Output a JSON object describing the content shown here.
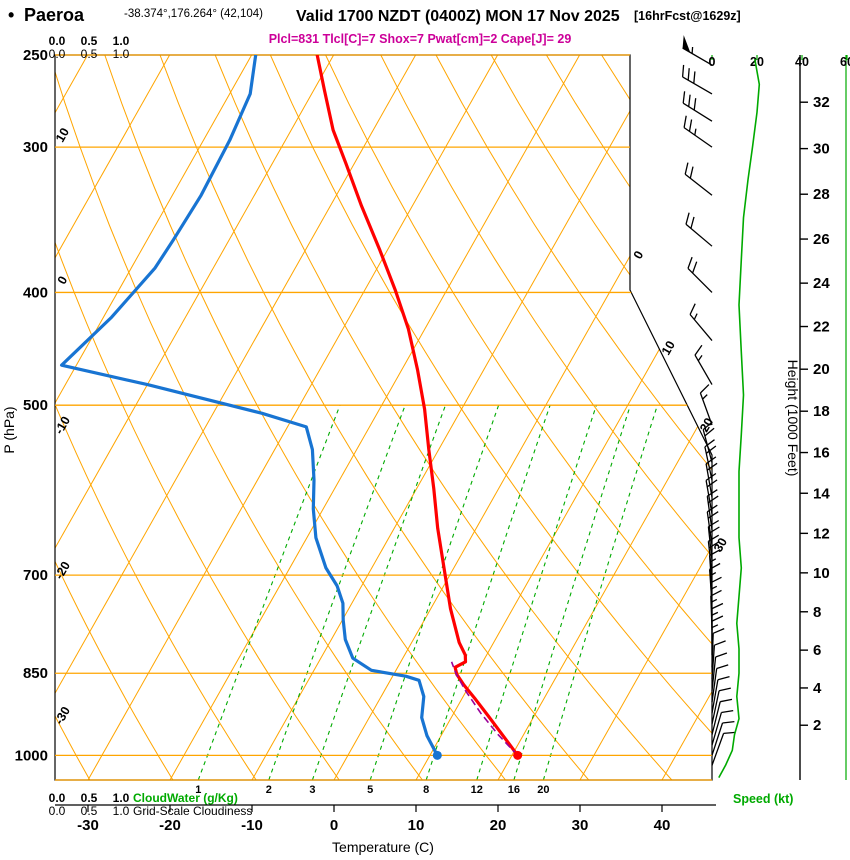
{
  "header": {
    "bullet": "•",
    "station": "Paeroa",
    "coords": "-38.374°,176.264° (42,104)",
    "valid": "Valid 1700 NZDT (0400Z) MON 17 Nov 2025",
    "fcst_tag": "[16hrFcst@1629z]",
    "params": "Plcl=831 Tlcl[C]=7 Shox=7 Pwat[cm]=2 Cape[J]= 29"
  },
  "axis_titles": {
    "pressure": "P (hPa)",
    "temperature": "Temperature (C)",
    "height": "Height (1000 Feet)",
    "speed": "Speed (kt)"
  },
  "scales": {
    "values": [
      "0.0",
      "0.5",
      "1.0"
    ],
    "cloudwater_label": "CloudWater (g/Kg)",
    "gridscale_label": "Grid-Scale Cloudiness"
  },
  "colors": {
    "grid_orange": "#FFA500",
    "green": "#00AA00",
    "temp_red": "#FF0000",
    "dewpoint_blue": "#1874D2",
    "parcel_magenta": "#990099",
    "params_magenta": "#CC0099",
    "black": "#000000"
  },
  "chart_data": {
    "type": "line",
    "subtype": "skew-t-log-p-sounding",
    "title": "Paeroa forecast sounding",
    "pressure_axis": {
      "scale": "log",
      "range_hpa": [
        250,
        1050
      ],
      "ticks": [
        250,
        300,
        400,
        500,
        700,
        850,
        1000
      ],
      "label": "P (hPa)"
    },
    "temp_axis": {
      "unit": "C",
      "ticks": [
        -30,
        -20,
        -10,
        0,
        10,
        20,
        30,
        40
      ],
      "label": "Temperature (C)"
    },
    "height_axis": {
      "unit": "1000 ft",
      "ticks": [
        2,
        4,
        6,
        8,
        10,
        12,
        14,
        16,
        18,
        20,
        22,
        24,
        26,
        28,
        30,
        32
      ],
      "label": "Height (1000 Feet)"
    },
    "speed_axis": {
      "unit": "kt",
      "ticks": [
        0,
        20,
        40,
        60
      ],
      "label": "Speed (kt)"
    },
    "isotherm_step_c": 10,
    "isotherm_left_edge_labels": [
      10,
      0,
      -10,
      -20,
      -30
    ],
    "isotherm_right_edge_labels": [
      0,
      10,
      20,
      30
    ],
    "mixing_ratio_gkg": [
      1,
      2,
      3,
      5,
      8,
      12,
      16,
      20
    ],
    "series": [
      {
        "name": "temperature",
        "unit": "deg C vs hPa",
        "points": [
          [
            250,
            -52
          ],
          [
            268,
            -48.7
          ],
          [
            290,
            -44.9
          ],
          [
            310,
            -41
          ],
          [
            337,
            -36.2
          ],
          [
            368,
            -30.9
          ],
          [
            398,
            -26.3
          ],
          [
            430,
            -22
          ],
          [
            466,
            -18.1
          ],
          [
            504,
            -14.5
          ],
          [
            546,
            -11.2
          ],
          [
            590,
            -7.9
          ],
          [
            638,
            -4.7
          ],
          [
            690,
            -1.2
          ],
          [
            748,
            2.4
          ],
          [
            800,
            5.8
          ],
          [
            820,
            7.4
          ],
          [
            831,
            7.9
          ],
          [
            840,
            7
          ],
          [
            852,
            7.7
          ],
          [
            870,
            9.3
          ],
          [
            895,
            11.7
          ],
          [
            925,
            14.4
          ],
          [
            960,
            17.4
          ],
          [
            1000,
            20.7
          ]
        ]
      },
      {
        "name": "dewpoint",
        "unit": "deg C vs hPa",
        "points": [
          [
            250,
            -59.5
          ],
          [
            270,
            -57.5
          ],
          [
            296,
            -56.8
          ],
          [
            330,
            -56.5
          ],
          [
            360,
            -56.8
          ],
          [
            381,
            -57.1
          ],
          [
            420,
            -59
          ],
          [
            462,
            -61.8
          ],
          [
            480,
            -50
          ],
          [
            508,
            -34.1
          ],
          [
            522,
            -27.7
          ],
          [
            546,
            -25.4
          ],
          [
            580,
            -23.1
          ],
          [
            614,
            -21.2
          ],
          [
            650,
            -18.9
          ],
          [
            690,
            -15.6
          ],
          [
            715,
            -13
          ],
          [
            740,
            -11.1
          ],
          [
            765,
            -9.9
          ],
          [
            795,
            -8.3
          ],
          [
            825,
            -6.1
          ],
          [
            845,
            -3
          ],
          [
            855,
            1.6
          ],
          [
            862,
            3.5
          ],
          [
            890,
            5.2
          ],
          [
            928,
            6.4
          ],
          [
            962,
            8.3
          ],
          [
            1000,
            10.9
          ]
        ]
      },
      {
        "name": "parcel_ascent",
        "style": "dashed",
        "points": [
          [
            1000,
            20.7
          ],
          [
            960,
            16.9
          ],
          [
            920,
            13.3
          ],
          [
            880,
            9.9
          ],
          [
            850,
            7.5
          ],
          [
            831,
            6.2
          ]
        ]
      },
      {
        "name": "wind_speed_profile",
        "unit": "kt vs hPa",
        "points": [
          [
            252,
            19
          ],
          [
            265,
            21
          ],
          [
            280,
            20
          ],
          [
            300,
            18
          ],
          [
            320,
            16
          ],
          [
            345,
            14
          ],
          [
            375,
            13
          ],
          [
            410,
            12
          ],
          [
            450,
            13
          ],
          [
            490,
            14
          ],
          [
            530,
            13
          ],
          [
            570,
            12
          ],
          [
            610,
            12
          ],
          [
            650,
            12
          ],
          [
            690,
            13
          ],
          [
            730,
            12
          ],
          [
            770,
            11
          ],
          [
            810,
            12
          ],
          [
            850,
            12
          ],
          [
            890,
            11
          ],
          [
            930,
            12
          ],
          [
            960,
            10
          ],
          [
            990,
            9
          ],
          [
            1020,
            6
          ],
          [
            1045,
            3
          ]
        ]
      }
    ],
    "surface_markers": {
      "pressure_hpa": 1000,
      "temperature_c": 20.7,
      "dewpoint_c": 10.9
    },
    "wind_barbs": [
      [
        255,
        300,
        55
      ],
      [
        270,
        300,
        30
      ],
      [
        285,
        302,
        28
      ],
      [
        300,
        305,
        25
      ],
      [
        330,
        308,
        22
      ],
      [
        365,
        310,
        20
      ],
      [
        400,
        315,
        18
      ],
      [
        440,
        320,
        15
      ],
      [
        480,
        330,
        15
      ],
      [
        520,
        340,
        15
      ],
      [
        560,
        345,
        18
      ],
      [
        580,
        348,
        18
      ],
      [
        600,
        350,
        20
      ],
      [
        620,
        350,
        20
      ],
      [
        640,
        352,
        20
      ],
      [
        660,
        352,
        18
      ],
      [
        680,
        354,
        18
      ],
      [
        700,
        354,
        18
      ],
      [
        720,
        356,
        15
      ],
      [
        740,
        356,
        15
      ],
      [
        760,
        358,
        15
      ],
      [
        780,
        358,
        15
      ],
      [
        800,
        0,
        15
      ],
      [
        820,
        0,
        15
      ],
      [
        840,
        2,
        12
      ],
      [
        860,
        4,
        12
      ],
      [
        880,
        6,
        12
      ],
      [
        900,
        8,
        10
      ],
      [
        920,
        10,
        10
      ],
      [
        940,
        12,
        10
      ],
      [
        960,
        14,
        10
      ],
      [
        980,
        16,
        8
      ],
      [
        1000,
        18,
        8
      ],
      [
        1020,
        20,
        8
      ]
    ]
  }
}
